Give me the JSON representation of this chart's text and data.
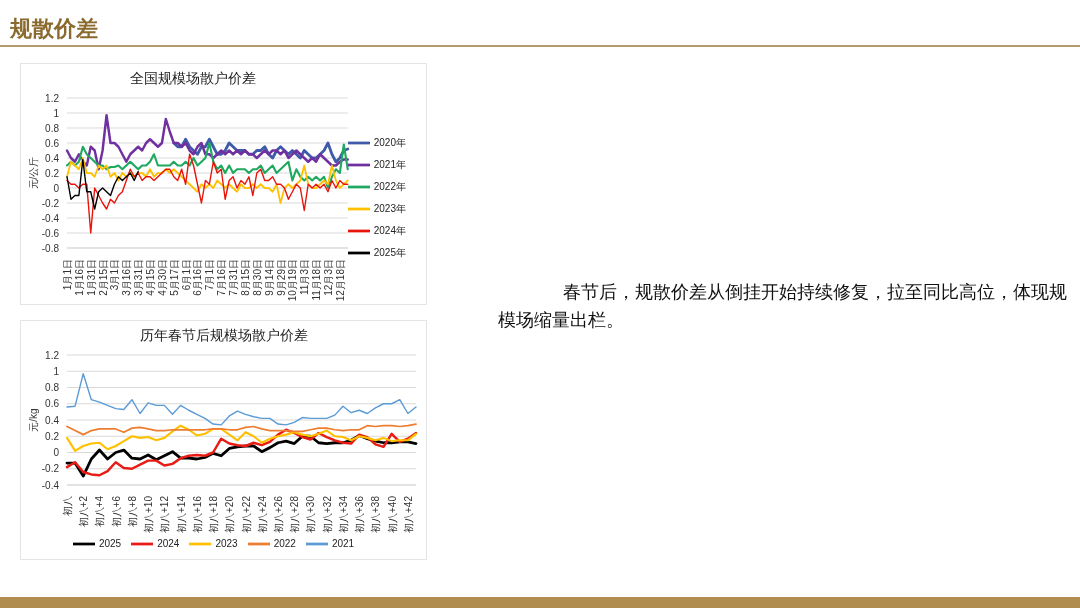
{
  "chart_data": [
    {
      "type": "other",
      "title": "规散价差",
      "annotations": [
        "春节后，规散价差从倒挂开始持续修复，拉至同比高位，体现规模场缩量出栏。"
      ]
    },
    {
      "type": "line",
      "title": "全国规模场散户价差",
      "ylabel": "元/公斤",
      "ylim": [
        -0.8,
        1.2
      ],
      "yticks": [
        -0.8,
        -0.6,
        -0.4,
        -0.2,
        0,
        0.2,
        0.4,
        0.6,
        0.8,
        1,
        1.2
      ],
      "grid": "y",
      "legend": "right",
      "categories": [
        "1月1日",
        null,
        null,
        "1月16日",
        null,
        null,
        "1月31日",
        null,
        null,
        "2月15日",
        null,
        null,
        "3月1日",
        null,
        null,
        "3月16日",
        null,
        null,
        "3月31日",
        null,
        null,
        "4月15日",
        null,
        null,
        "4月30日",
        null,
        null,
        "5月17日",
        null,
        null,
        "6月1日",
        null,
        null,
        "6月16日",
        null,
        null,
        "7月1日",
        null,
        null,
        "7月16日",
        null,
        null,
        "7月31日",
        null,
        null,
        "8月15日",
        null,
        null,
        "8月30日",
        null,
        null,
        "9月14日",
        null,
        null,
        "9月29日",
        null,
        null,
        "10月19日",
        null,
        null,
        "11月3日",
        null,
        null,
        "11月18日",
        null,
        null,
        "12月3日",
        null,
        null,
        "12月18日",
        null,
        null
      ],
      "series": [
        {
          "name": "2020年",
          "color": "#3f5aa8",
          "values": [
            null,
            null,
            null,
            null,
            null,
            null,
            null,
            null,
            null,
            null,
            null,
            null,
            null,
            null,
            null,
            null,
            null,
            null,
            null,
            null,
            null,
            null,
            null,
            null,
            null,
            null,
            null,
            0.6,
            0.55,
            0.55,
            0.65,
            0.55,
            0.5,
            0.45,
            0.55,
            0.55,
            0.65,
            0.55,
            0.45,
            0.45,
            0.5,
            0.6,
            0.55,
            0.5,
            0.5,
            0.5,
            0.45,
            0.45,
            0.5,
            0.5,
            0.55,
            0.45,
            0.4,
            0.5,
            0.55,
            0.5,
            0.45,
            0.5,
            0.45,
            0.4,
            0.5,
            0.45,
            0.4,
            0.4,
            0.45,
            0.5,
            0.6,
            0.45,
            0.35,
            0.4,
            0.5,
            0.52
          ]
        },
        {
          "name": "2021年",
          "color": "#7030a0",
          "values": [
            0.5,
            0.4,
            0.35,
            0.45,
            0.35,
            0.3,
            0.55,
            0.5,
            0.25,
            0.5,
            0.97,
            0.6,
            0.6,
            0.55,
            0.45,
            0.35,
            0.45,
            0.5,
            0.55,
            0.5,
            0.6,
            0.65,
            0.6,
            0.55,
            0.6,
            0.92,
            0.75,
            0.6,
            0.6,
            0.55,
            0.6,
            0.5,
            0.45,
            0.55,
            0.6,
            0.45,
            0.45,
            0.4,
            0.45,
            0.5,
            0.45,
            0.5,
            0.45,
            0.5,
            0.45,
            0.5,
            0.45,
            0.45,
            0.4,
            0.45,
            0.5,
            0.45,
            0.5,
            0.5,
            0.45,
            0.5,
            0.4,
            0.45,
            0.5,
            0.45,
            0.4,
            0.35,
            0.4,
            0.35,
            0.45,
            0.4,
            0.35,
            0.3,
            0.3,
            0.35,
            0.38,
            0.38
          ]
        },
        {
          "name": "2022年",
          "color": "#1fa85f",
          "values": [
            0.3,
            0.35,
            0.3,
            0.35,
            0.55,
            0.45,
            0.4,
            0.35,
            0.3,
            0.3,
            0.25,
            0.28,
            0.28,
            0.3,
            0.25,
            0.3,
            0.35,
            0.3,
            0.25,
            0.3,
            0.3,
            0.35,
            0.45,
            0.3,
            0.3,
            0.3,
            0.3,
            0.35,
            0.3,
            0.3,
            0.35,
            0.3,
            0.4,
            0.3,
            0.35,
            0.4,
            0.6,
            0.35,
            0.25,
            0.3,
            0.2,
            0.3,
            0.2,
            0.25,
            0.25,
            0.25,
            0.2,
            0.25,
            0.25,
            0.3,
            0.2,
            0.25,
            0.3,
            0.2,
            0.25,
            0.3,
            0.35,
            0.1,
            0.25,
            0.15,
            0.1,
            0.15,
            0.1,
            0.15,
            0.1,
            0.15,
            0,
            0.15,
            0.25,
            0.2,
            0.58,
            0.25
          ]
        },
        {
          "name": "2023年",
          "color": "#ffc000",
          "values": [
            0.15,
            0.35,
            0.3,
            0.25,
            0.4,
            0.2,
            0.2,
            0.15,
            0.3,
            0.25,
            0.3,
            0.15,
            0.2,
            0.1,
            0.2,
            0.15,
            0.2,
            0.15,
            0.2,
            0.2,
            0.15,
            0.25,
            0.15,
            0.2,
            0.2,
            0.25,
            0.2,
            0.25,
            0.2,
            0.15,
            0.1,
            0.05,
            0,
            -0.05,
            0.05,
            0,
            0.05,
            0,
            0.1,
            0.05,
            0,
            0.05,
            0,
            -0.05,
            0.05,
            0,
            0,
            0.05,
            0,
            0.05,
            0,
            0,
            -0.05,
            0.05,
            -0.2,
            0,
            0.05,
            0,
            0.05,
            0.1,
            0.3,
            0.05,
            0,
            0,
            0.05,
            0.1,
            0.05,
            0.3,
            0.1,
            0,
            0.05,
            0.1
          ]
        },
        {
          "name": "2024年",
          "color": "#e8140c",
          "values": [
            0.1,
            0.05,
            0.05,
            0,
            0.05,
            0.05,
            -0.6,
            0,
            -0.1,
            -0.2,
            -0.28,
            -0.15,
            -0.2,
            -0.1,
            -0.05,
            0.1,
            0.25,
            0.15,
            0.2,
            0.1,
            0.15,
            0.15,
            0.1,
            0.15,
            0.2,
            0.25,
            0.25,
            0.15,
            0.1,
            0.25,
            0.05,
            0.45,
            0.3,
            0.05,
            -0.2,
            0.1,
            0.05,
            0.35,
            0.2,
            0.25,
            -0.15,
            0.1,
            0.15,
            0,
            0.1,
            0.05,
            0.15,
            -0.1,
            0.2,
            0.25,
            0.1,
            0.1,
            0.15,
            0.05,
            0.05,
            0,
            -0.15,
            -0.05,
            0.05,
            0,
            -0.3,
            0.05,
            0,
            0.05,
            0,
            0.05,
            -0.05,
            0.1,
            0,
            0.1,
            0.05,
            0.05
          ]
        },
        {
          "name": "2025年",
          "color": "#000000",
          "values": [
            0.15,
            -0.15,
            -0.1,
            -0.1,
            0.38,
            -0.05,
            -0.05,
            -0.28,
            -0.05,
            0,
            -0.05,
            -0.1,
            0.05,
            0.15,
            0.1,
            0.15,
            0.2,
            0.1,
            0.22,
            null,
            null,
            null,
            null,
            null,
            null,
            null,
            null,
            null,
            null,
            null,
            null,
            null,
            null,
            null,
            null,
            null,
            null,
            null,
            null,
            null,
            null,
            null,
            null,
            null,
            null,
            null,
            null,
            null,
            null,
            null,
            null,
            null,
            null,
            null,
            null,
            null,
            null,
            null,
            null,
            null,
            null,
            null,
            null,
            null,
            null,
            null,
            null,
            null,
            null,
            null,
            null,
            null
          ]
        }
      ]
    },
    {
      "type": "line",
      "title": "历年春节后规模场散户价差",
      "ylabel": "元/kg",
      "ylim": [
        -0.4,
        1.2
      ],
      "yticks": [
        -0.4,
        -0.2,
        0,
        0.2,
        0.4,
        0.6,
        0.8,
        1,
        1.2
      ],
      "grid": "y",
      "legend": "bottom",
      "categories": [
        "初八",
        null,
        "初八+2",
        null,
        "初八+4",
        null,
        "初八+6",
        null,
        "初八+8",
        null,
        "初八+10",
        null,
        "初八+12",
        null,
        "初八+14",
        null,
        "初八+16",
        null,
        "初八+18",
        null,
        "初八+20",
        null,
        "初八+22",
        null,
        "初八+24",
        null,
        "初八+26",
        null,
        "初八+28",
        null,
        "初八+30",
        null,
        "初八+32",
        null,
        "初八+34",
        null,
        "初八+36",
        null,
        "初八+38",
        null,
        "初八+40",
        null,
        "初八+42",
        null
      ],
      "series": [
        {
          "name": "2025",
          "color": "#000000",
          "values": [
            -0.13,
            -0.13,
            -0.29,
            -0.08,
            0.03,
            -0.08,
            0,
            0.03,
            -0.07,
            -0.08,
            -0.03,
            -0.09,
            -0.04,
            0.01,
            -0.07,
            -0.07,
            -0.08,
            -0.06,
            -0.01,
            -0.04,
            0.05,
            0.07,
            0.08,
            0.08,
            0.01,
            0.06,
            0.12,
            0.14,
            0.11,
            0.2,
            0.2,
            0.12,
            0.11,
            0.12,
            0.12,
            0.15,
            0.21,
            0.17,
            0.14,
            0.12,
            0.12,
            0.13,
            0.13,
            0.11
          ]
        },
        {
          "name": "2024",
          "color": "#e81c14",
          "values": [
            -0.18,
            -0.12,
            -0.24,
            -0.27,
            -0.28,
            -0.23,
            -0.12,
            -0.19,
            -0.2,
            -0.15,
            -0.1,
            -0.1,
            -0.16,
            -0.14,
            -0.07,
            -0.04,
            -0.03,
            -0.04,
            0,
            0.17,
            0.11,
            0.09,
            0.08,
            0.12,
            0.09,
            0.13,
            0.22,
            0.28,
            0.24,
            0.19,
            0.16,
            0.24,
            0.19,
            0.15,
            0.12,
            0.11,
            0.22,
            0.19,
            0.1,
            0.07,
            0.23,
            0.13,
            0.17,
            0.24
          ]
        },
        {
          "name": "2023",
          "color": "#ffc000",
          "values": [
            0.18,
            0.02,
            0.08,
            0.11,
            0.12,
            0.04,
            0.08,
            0.14,
            0.2,
            0.18,
            0.19,
            0.15,
            0.18,
            0.26,
            0.33,
            0.28,
            0.21,
            0.23,
            0.29,
            0.29,
            0.22,
            0.15,
            0.25,
            0.2,
            0.12,
            0.17,
            0.2,
            0.22,
            0.25,
            0.22,
            0.2,
            0.23,
            0.27,
            0.2,
            0.19,
            0.15,
            0.2,
            0.18,
            0.15,
            0.18,
            0.14,
            0.15,
            0.15,
            0.23
          ]
        },
        {
          "name": "2022",
          "color": "#ed7d31",
          "values": [
            0.32,
            0.27,
            0.22,
            0.27,
            0.29,
            0.29,
            0.29,
            0.25,
            0.3,
            0.31,
            0.29,
            0.27,
            0.27,
            0.28,
            0.28,
            0.28,
            0.28,
            0.28,
            0.29,
            0.29,
            0.28,
            0.28,
            0.31,
            0.32,
            0.29,
            0.27,
            0.27,
            0.27,
            0.26,
            0.26,
            0.28,
            0.3,
            0.3,
            0.28,
            0.27,
            0.28,
            0.28,
            0.33,
            0.32,
            0.33,
            0.33,
            0.32,
            0.33,
            0.35
          ]
        },
        {
          "name": "2021",
          "color": "#5b9bd5",
          "values": [
            0.56,
            0.57,
            0.97,
            0.65,
            0.62,
            0.58,
            0.54,
            0.53,
            0.65,
            0.48,
            0.61,
            0.58,
            0.58,
            0.47,
            0.58,
            0.52,
            0.47,
            0.42,
            0.35,
            0.34,
            0.45,
            0.51,
            0.47,
            0.44,
            0.42,
            0.42,
            0.35,
            0.34,
            0.37,
            0.43,
            0.42,
            0.42,
            0.42,
            0.46,
            0.57,
            0.49,
            0.52,
            0.48,
            0.55,
            0.6,
            0.6,
            0.65,
            0.48,
            0.56
          ]
        }
      ]
    }
  ]
}
